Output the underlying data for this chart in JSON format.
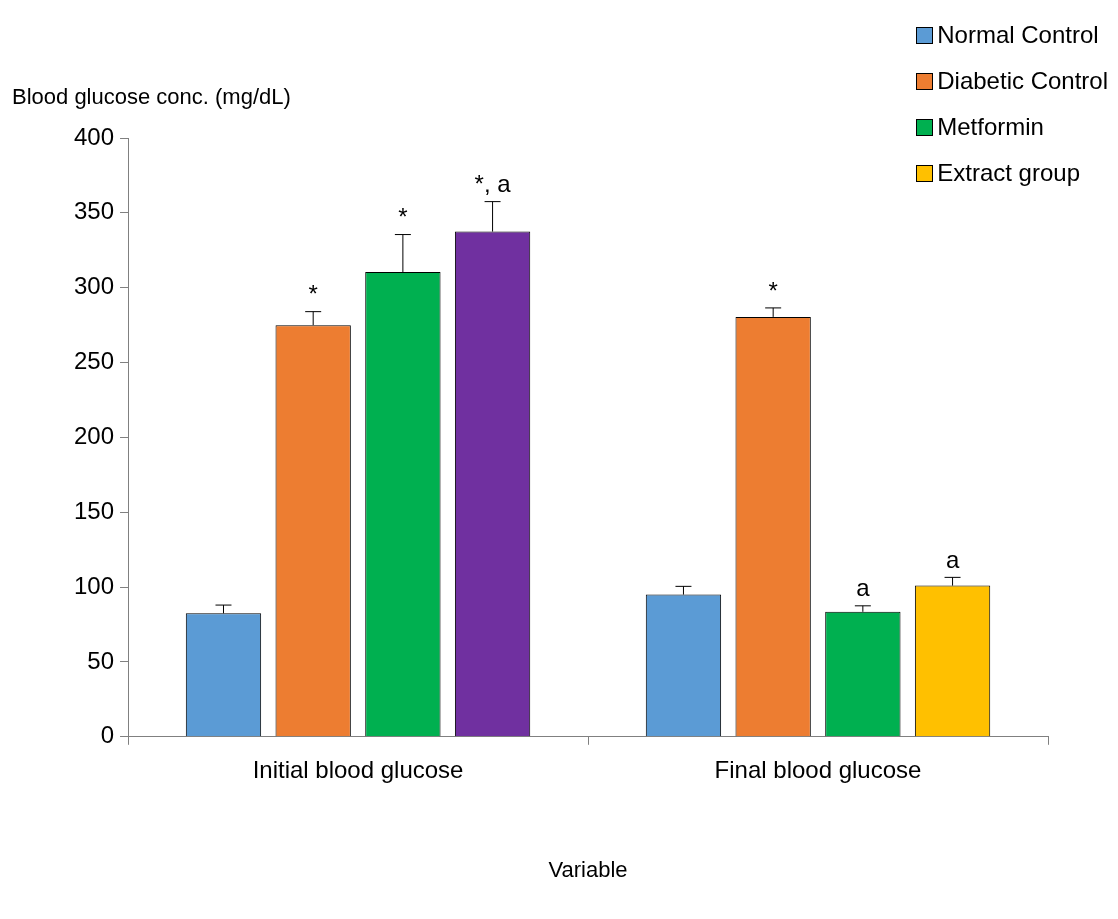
{
  "chart_data": {
    "type": "bar",
    "xlabel": "Variable",
    "ylabel": "Blood glucose conc. (mg/dL)",
    "categories": [
      "Initial blood glucose",
      "Final blood glucose"
    ],
    "series": [
      {
        "name": "Normal Control",
        "color": "#5b9bd5",
        "colors": [
          "#5b9bd5",
          "#5b9bd5"
        ],
        "values": [
          82.5,
          95
        ],
        "errors": [
          5.5,
          5.5
        ],
        "value_labels": [
          null,
          null
        ]
      },
      {
        "name": "Diabetic Control",
        "color": "#ed7d31",
        "colors": [
          "#ed7d31",
          "#ed7d31"
        ],
        "values": [
          275,
          280.5
        ],
        "errors": [
          9,
          6
        ],
        "value_labels": [
          "*",
          "*"
        ]
      },
      {
        "name": "Metformin",
        "color": "#00b050",
        "colors": [
          "#00b050",
          "#00b050"
        ],
        "values": [
          310.5,
          83.5
        ],
        "errors": [
          25,
          4
        ],
        "value_labels": [
          "*",
          "a"
        ]
      },
      {
        "name": "Extract group",
        "color": "#ffc000",
        "colors": [
          "#7030a0",
          "#ffc000"
        ],
        "values": [
          337.5,
          101
        ],
        "errors": [
          20,
          5.5
        ],
        "value_labels": [
          "*, a",
          "a"
        ]
      }
    ],
    "ylim": [
      0,
      400
    ],
    "yticks": [
      0,
      50,
      100,
      150,
      200,
      250,
      300,
      350,
      400
    ],
    "grid": false,
    "legend": "top right"
  }
}
